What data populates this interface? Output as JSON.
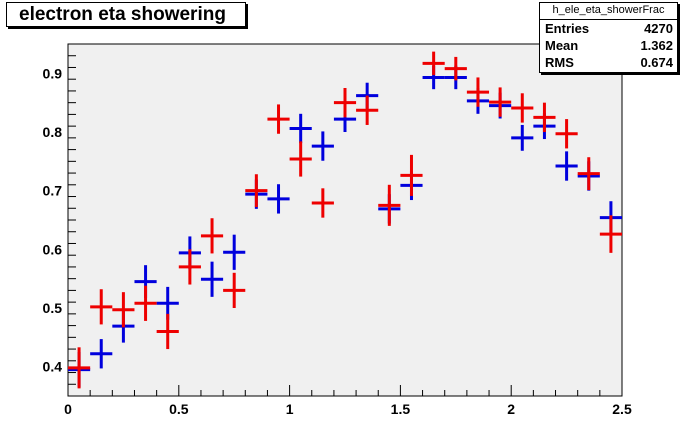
{
  "stats": {
    "name": "h_ele_eta_showerFrac",
    "rows": [
      {
        "label": "Entries",
        "value": "4270"
      },
      {
        "label": "Mean",
        "value": "1.362"
      },
      {
        "label": "RMS",
        "value": "0.674"
      }
    ]
  },
  "colors": {
    "frame_bg": "#f0f0f0",
    "series_a": "#0000dd",
    "series_b": "#ee0000"
  },
  "chart_data": {
    "type": "scatter",
    "title": "electron eta showering",
    "xlabel": "",
    "ylabel": "",
    "xlim": [
      0,
      2.5
    ],
    "ylim": [
      0.35,
      0.95
    ],
    "x_ticks": [
      "0",
      "0.5",
      "1",
      "1.5",
      "2",
      "2.5"
    ],
    "y_ticks": [
      "0.4",
      "0.5",
      "0.6",
      "0.7",
      "0.8",
      "0.9"
    ],
    "bin_width": 0.1,
    "x": [
      0.05,
      0.15,
      0.25,
      0.35,
      0.45,
      0.55,
      0.65,
      0.75,
      0.85,
      0.95,
      1.05,
      1.15,
      1.25,
      1.35,
      1.45,
      1.55,
      1.65,
      1.75,
      1.85,
      1.95,
      2.05,
      2.15,
      2.25,
      2.35,
      2.45
    ],
    "series": [
      {
        "color": "#0000dd",
        "values": [
          0.395,
          0.422,
          0.469,
          0.545,
          0.508,
          0.594,
          0.549,
          0.595,
          0.694,
          0.686,
          0.806,
          0.776,
          0.822,
          0.862,
          0.669,
          0.709,
          0.893,
          0.893,
          0.853,
          0.845,
          0.79,
          0.81,
          0.742,
          0.725,
          0.654
        ],
        "errors": [
          0.03,
          0.025,
          0.028,
          0.028,
          0.028,
          0.028,
          0.03,
          0.03,
          0.025,
          0.025,
          0.025,
          0.025,
          0.022,
          0.022,
          0.025,
          0.025,
          0.02,
          0.02,
          0.022,
          0.022,
          0.022,
          0.022,
          0.025,
          0.025,
          0.028
        ]
      },
      {
        "color": "#ee0000",
        "values": [
          0.398,
          0.502,
          0.497,
          0.508,
          0.46,
          0.57,
          0.623,
          0.53,
          0.7,
          0.822,
          0.754,
          0.679,
          0.85,
          0.837,
          0.675,
          0.726,
          0.917,
          0.908,
          0.868,
          0.851,
          0.841,
          0.825,
          0.797,
          0.729,
          0.626
        ],
        "errors": [
          0.035,
          0.03,
          0.03,
          0.03,
          0.03,
          0.03,
          0.03,
          0.03,
          0.028,
          0.025,
          0.03,
          0.025,
          0.025,
          0.025,
          0.035,
          0.035,
          0.02,
          0.02,
          0.025,
          0.025,
          0.025,
          0.025,
          0.025,
          0.028,
          0.032
        ]
      }
    ]
  }
}
